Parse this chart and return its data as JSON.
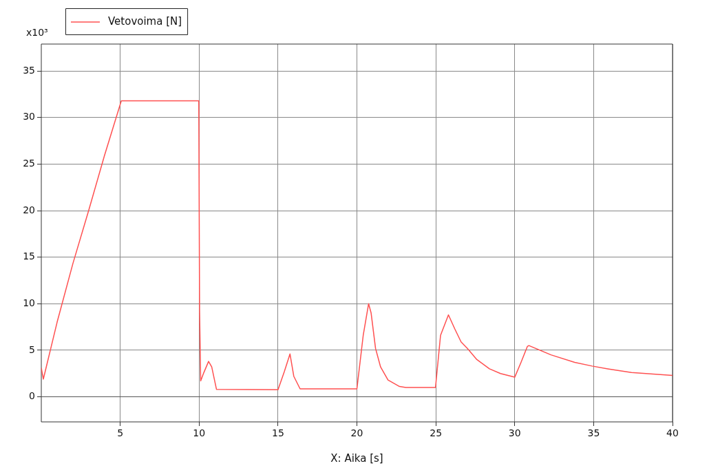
{
  "chart_data": {
    "type": "line",
    "xlabel": "X: Aika [s]",
    "annotations": [
      "x10³"
    ],
    "series": [
      {
        "name": "Vetovoima [N]",
        "color": "#ff5050",
        "x": [
          0,
          0.13,
          1,
          2,
          3,
          4,
          5.07,
          5.2,
          9.98,
          10.03,
          10.1,
          10.3,
          10.6,
          10.8,
          11.1,
          15,
          15.4,
          15.76,
          16.0,
          16.4,
          20,
          20.4,
          20.74,
          20.9,
          21.18,
          21.5,
          21.97,
          22.7,
          23.1,
          24.98,
          25.3,
          25.8,
          26.2,
          26.6,
          27,
          27.6,
          28.4,
          29.1,
          30,
          30.4,
          30.8,
          30.9,
          32.3,
          33.8,
          34.9,
          35.9,
          37.4,
          40
        ],
        "values": [
          3.1,
          1.9,
          8.0,
          14.3,
          20.0,
          25.9,
          31.8,
          31.8,
          31.8,
          9.2,
          1.7,
          2.6,
          3.8,
          3.2,
          0.8,
          0.75,
          2.7,
          4.6,
          2.2,
          0.85,
          0.85,
          6.6,
          10.0,
          9.0,
          5.2,
          3.2,
          1.8,
          1.1,
          1.0,
          1.0,
          6.6,
          8.8,
          7.3,
          5.9,
          5.2,
          4.0,
          3.0,
          2.5,
          2.1,
          3.7,
          5.4,
          5.5,
          4.5,
          3.7,
          3.3,
          3.0,
          2.6,
          2.3
        ]
      }
    ],
    "xlim": [
      0,
      40
    ],
    "xticks": [
      5,
      10,
      15,
      20,
      25,
      30,
      35,
      40
    ],
    "ylim": [
      -2.7,
      37.9
    ],
    "yticks": [
      0,
      5,
      10,
      15,
      20,
      25,
      30,
      35
    ],
    "grid": true,
    "legend": "top left",
    "marker": "none",
    "line_style": "solid",
    "ref_lines": [
      {
        "axis": "y",
        "value": 0,
        "color": "#555555"
      }
    ]
  }
}
